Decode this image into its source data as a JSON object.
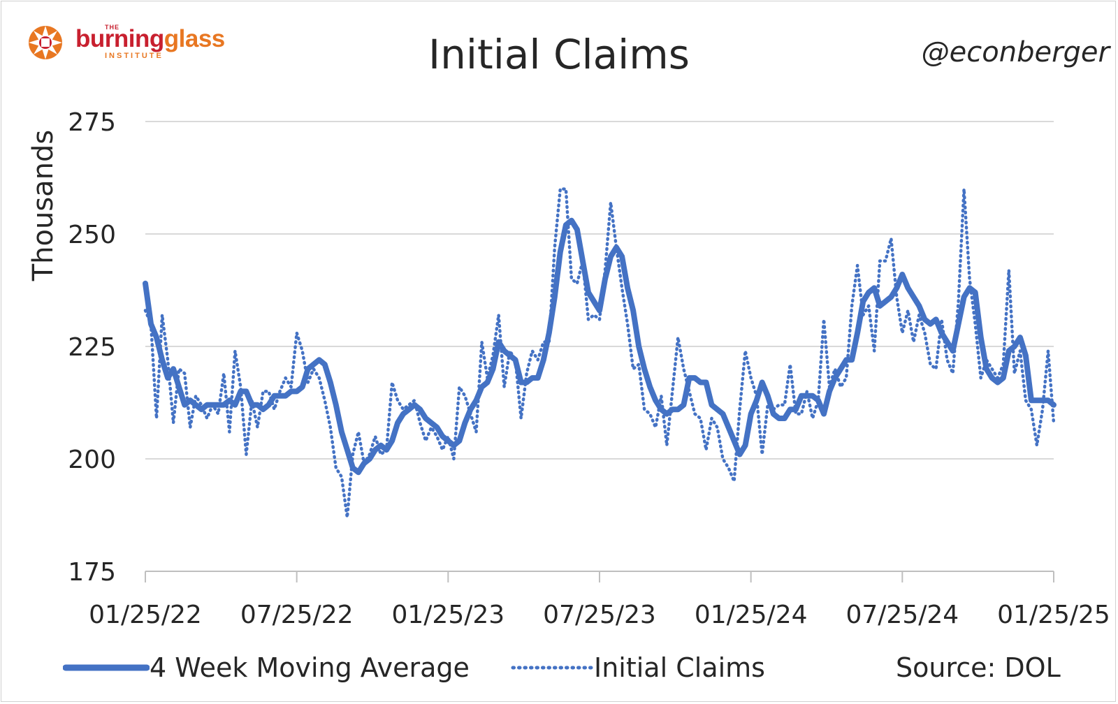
{
  "header": {
    "logo_the": "THE",
    "logo_word_1": "burning",
    "logo_word_2": "glass",
    "logo_institute": "INSTITUTE",
    "handle": "@econberger"
  },
  "colors": {
    "series": "#4472c4",
    "grid": "#d9d9d9",
    "text": "#262626",
    "logo_red": "#c8202f",
    "logo_orange": "#e87722"
  },
  "chart_data": {
    "type": "line",
    "title": "Initial Claims",
    "ylabel": "Thousands",
    "xlabel": "",
    "ylim": [
      175,
      275
    ],
    "yticks": [
      175,
      200,
      225,
      250,
      275
    ],
    "x_ticks": [
      "01/25/22",
      "07/25/22",
      "01/25/23",
      "07/25/23",
      "01/25/24",
      "07/25/24",
      "01/25/25"
    ],
    "x_range": [
      "01/25/22",
      "01/25/25"
    ],
    "grid": "horizontal",
    "legend_position": "bottom",
    "source": "Source: DOL",
    "series": [
      {
        "name": "4 Week Moving Average",
        "style": "solid",
        "values": [
          239,
          230,
          227,
          222,
          218,
          220,
          216,
          212,
          213,
          212,
          211,
          212,
          212,
          212,
          212,
          213,
          212,
          215,
          215,
          212,
          212,
          211,
          212,
          214,
          214,
          214,
          215,
          215,
          216,
          220,
          221,
          222,
          221,
          217,
          212,
          206,
          202,
          198,
          197,
          199,
          200,
          202,
          203,
          202,
          204,
          208,
          210,
          211,
          212,
          211,
          209,
          208,
          207,
          205,
          204,
          203,
          204,
          208,
          211,
          213,
          216,
          217,
          220,
          226,
          224,
          223,
          222,
          217,
          217,
          218,
          218,
          222,
          228,
          236,
          246,
          252,
          253,
          251,
          244,
          237,
          235,
          233,
          240,
          245,
          247,
          245,
          238,
          233,
          225,
          220,
          216,
          213,
          211,
          210,
          211,
          211,
          212,
          218,
          218,
          217,
          217,
          212,
          211,
          210,
          207,
          204,
          201,
          203,
          210,
          213,
          217,
          214,
          210,
          209,
          209,
          211,
          211,
          214,
          214,
          214,
          213,
          210,
          215,
          218,
          220,
          222,
          222,
          228,
          235,
          237,
          238,
          234,
          235,
          236,
          238,
          241,
          238,
          236,
          234,
          231,
          230,
          231,
          228,
          226,
          224,
          230,
          236,
          238,
          237,
          227,
          220,
          218,
          217,
          218,
          224,
          225,
          227,
          223,
          213,
          213,
          213,
          213,
          212
        ]
      },
      {
        "name": "Initial Claims",
        "style": "dotted",
        "values": [
          233,
          230,
          209,
          232,
          222,
          208,
          220,
          219,
          207,
          214,
          212,
          209,
          212,
          210,
          219,
          206,
          224,
          216,
          201,
          213,
          207,
          215,
          215,
          211,
          215,
          218,
          216,
          228,
          224,
          217,
          220,
          218,
          213,
          207,
          198,
          196,
          187,
          201,
          206,
          199,
          201,
          205,
          201,
          202,
          217,
          213,
          211,
          212,
          213,
          208,
          204,
          207,
          205,
          202,
          205,
          200,
          216,
          214,
          210,
          206,
          226,
          218,
          223,
          232,
          216,
          224,
          222,
          209,
          219,
          224,
          222,
          226,
          226,
          247,
          260,
          260,
          240,
          239,
          244,
          231,
          232,
          231,
          242,
          257,
          247,
          238,
          230,
          220,
          221,
          211,
          210,
          207,
          214,
          203,
          215,
          227,
          220,
          215,
          210,
          209,
          202,
          209,
          207,
          200,
          198,
          195,
          211,
          224,
          218,
          214,
          201,
          212,
          211,
          212,
          212,
          221,
          210,
          210,
          215,
          209,
          213,
          231,
          216,
          220,
          216,
          218,
          234,
          243,
          232,
          234,
          224,
          244,
          244,
          249,
          236,
          228,
          233,
          226,
          232,
          228,
          221,
          220,
          231,
          222,
          219,
          235,
          260,
          240,
          230,
          218,
          222,
          220,
          218,
          221,
          242,
          219,
          224,
          213,
          211,
          203,
          211,
          224,
          208
        ]
      }
    ]
  }
}
